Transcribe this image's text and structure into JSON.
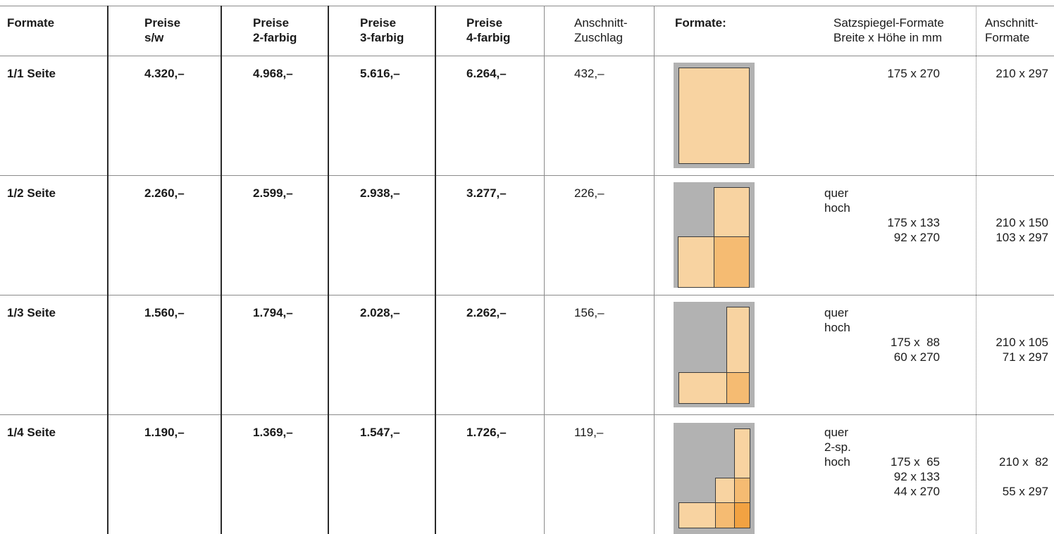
{
  "header": {
    "formate": "Formate",
    "preis_sw": [
      "Preise",
      "s/w"
    ],
    "preis_2": [
      "Preise",
      "2-farbig"
    ],
    "preis_3": [
      "Preise",
      "3-farbig"
    ],
    "preis_4": [
      "Preise",
      "4-farbig"
    ],
    "anschnitt_zuschlag": [
      "Anschnitt-",
      "Zuschlag"
    ],
    "formate_colon": "Formate:",
    "satzspiegel": [
      "Satzspiegel-Formate",
      "Breite x Höhe in mm"
    ],
    "anschnitt_formate": [
      "Anschnitt-",
      "Formate"
    ]
  },
  "rows": [
    {
      "format": "1/1 Seite",
      "sw": "4.320,–",
      "f2": "4.968,–",
      "f3": "5.616,–",
      "f4": "6.264,–",
      "zuschlag": "432,–",
      "satz_labels": [
        ""
      ],
      "satz_sizes": [
        "175 x 270"
      ],
      "anschnitt": [
        "210 x 297"
      ]
    },
    {
      "format": "1/2 Seite",
      "sw": "2.260,–",
      "f2": "2.599,–",
      "f3": "2.938,–",
      "f4": "3.277,–",
      "zuschlag": "226,–",
      "satz_labels": [
        "quer",
        "hoch"
      ],
      "satz_sizes": [
        "175 x 133",
        "92 x 270"
      ],
      "anschnitt": [
        "210 x 150",
        "103 x 297"
      ]
    },
    {
      "format": "1/3 Seite",
      "sw": "1.560,–",
      "f2": "1.794,–",
      "f3": "2.028,–",
      "f4": "2.262,–",
      "zuschlag": "156,–",
      "satz_labels": [
        "quer",
        "hoch"
      ],
      "satz_sizes": [
        "175 x  88",
        "60 x 270"
      ],
      "anschnitt": [
        "210 x 105",
        "71 x 297"
      ]
    },
    {
      "format": "1/4 Seite",
      "sw": "1.190,–",
      "f2": "1.369,–",
      "f3": "1.547,–",
      "f4": "1.726,–",
      "zuschlag": "119,–",
      "satz_labels": [
        "quer",
        "2-sp.",
        "hoch"
      ],
      "satz_sizes": [
        "175 x  65",
        "92 x 133",
        "44 x 270"
      ],
      "anschnitt": [
        "210 x  82",
        "",
        "55 x 297"
      ]
    }
  ],
  "colors": {
    "grey_page": "#b2b2b2",
    "light": "#f8d3a1",
    "medium": "#f5bb72",
    "dark": "#f2a242"
  }
}
